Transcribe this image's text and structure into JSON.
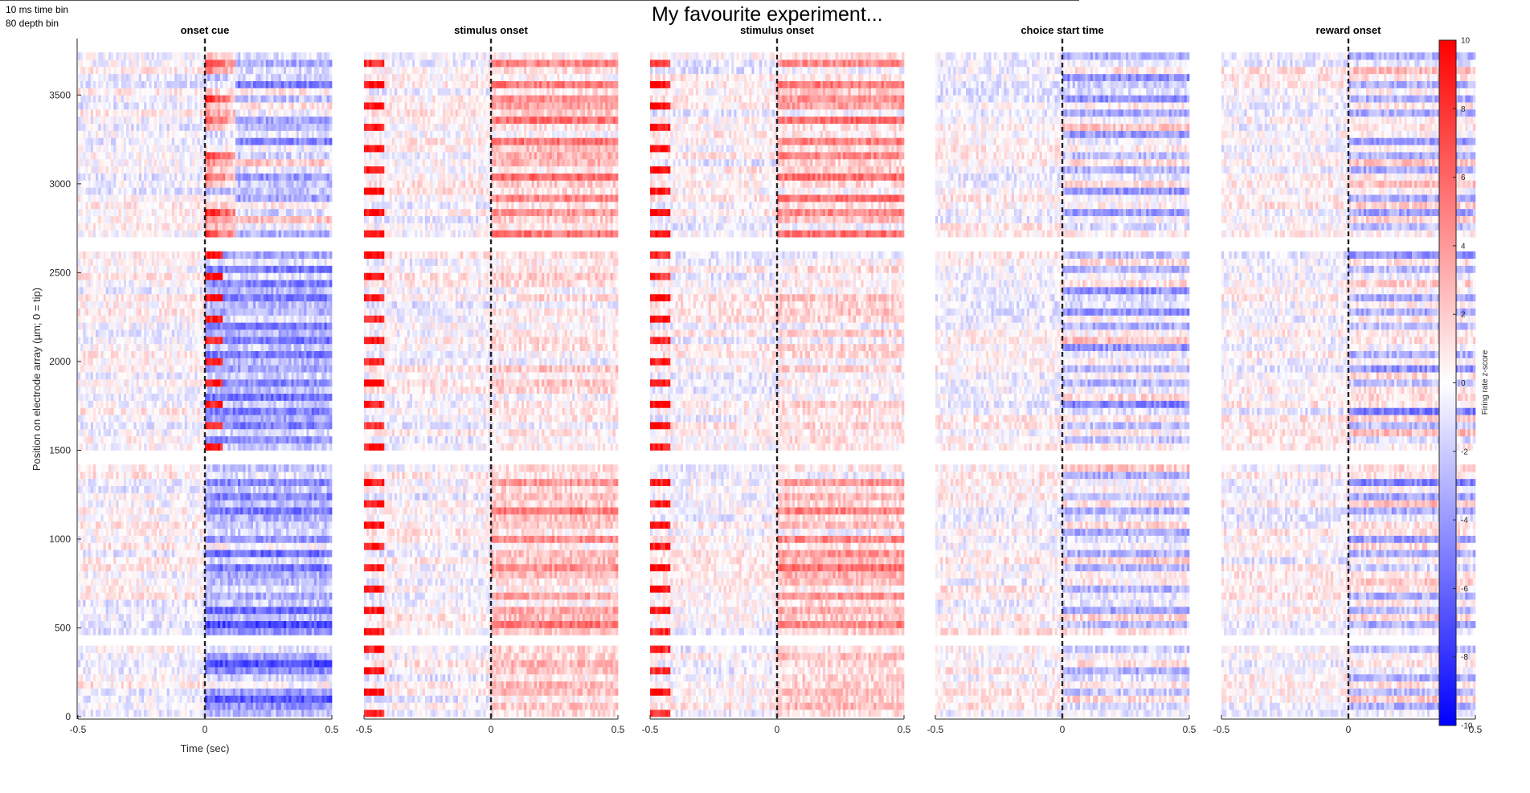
{
  "figure": {
    "title": "My favourite experiment...",
    "note_line1": "10 ms time bin",
    "note_line2": "80 depth bin"
  },
  "chart_data": {
    "type": "heatmap",
    "ylabel": "Position on electrode array (µm; 0 = tip)",
    "xlabel": "Time (sec)",
    "xlim": [
      -0.5,
      0.5
    ],
    "ylim": [
      0,
      3800
    ],
    "xticks": [
      "-0.5",
      "0",
      "0.5"
    ],
    "yticks": [
      {
        "value": 0,
        "label": "0"
      },
      {
        "value": 500,
        "label": "500"
      },
      {
        "value": 1000,
        "label": "1000"
      },
      {
        "value": 1500,
        "label": "1500"
      },
      {
        "value": 2000,
        "label": "2000"
      },
      {
        "value": 2500,
        "label": "2500"
      },
      {
        "value": 3000,
        "label": "3000"
      },
      {
        "value": 3500,
        "label": "3500"
      }
    ],
    "event_line_x": 0,
    "shanks_depth_ranges": [
      [
        0,
        380
      ],
      [
        460,
        1420
      ],
      [
        1500,
        2620
      ],
      [
        2700,
        3720
      ]
    ],
    "depth_bin_um": 80,
    "time_bin_s": 0.01,
    "colorbar": {
      "label": "Firing rate z-score",
      "min": -10,
      "max": 10,
      "ticks": [
        "10",
        "8",
        "6",
        "4",
        "2",
        "0",
        "-2",
        "-4",
        "-6",
        "-8",
        "-10"
      ],
      "colors": {
        "low": "#0000ff",
        "mid": "#ffffff",
        "high": "#ff0000"
      }
    },
    "panels": [
      {
        "title": "onset cue",
        "seed": 11,
        "pattern": "cue"
      },
      {
        "title": "stimulus onset",
        "seed": 23,
        "pattern": "stim"
      },
      {
        "title": "stimulus onset",
        "seed": 37,
        "pattern": "stim"
      },
      {
        "title": "choice start time",
        "seed": 41,
        "pattern": "choice"
      },
      {
        "title": "reward onset",
        "seed": 53,
        "pattern": "reward"
      }
    ]
  }
}
